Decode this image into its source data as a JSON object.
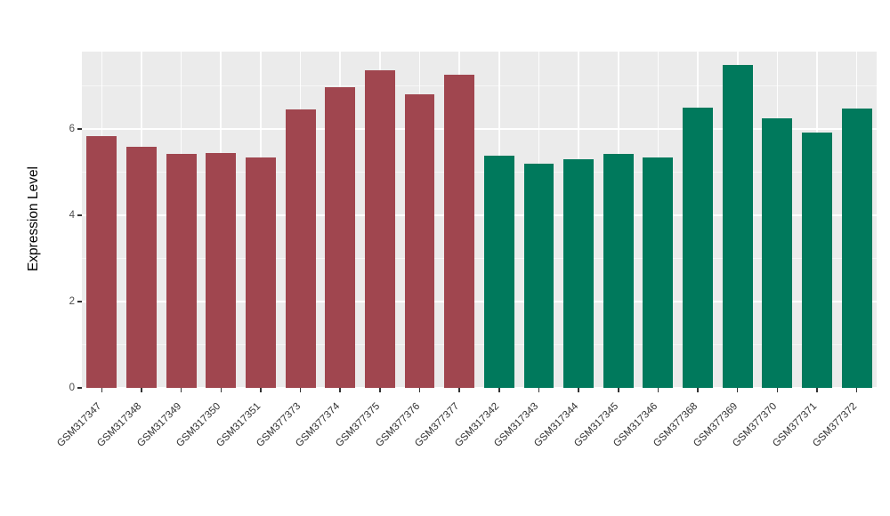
{
  "figure": {
    "background": "#FFFFFF",
    "panel_background": "#EBEBEB",
    "grid_color": "#FFFFFF",
    "axis_text_color": "#4D4D4D"
  },
  "chart_data": {
    "type": "bar",
    "title": "",
    "xlabel": "",
    "ylabel": "Expression Level",
    "categories": [
      "GSM317347",
      "GSM317348",
      "GSM317349",
      "GSM317350",
      "GSM317351",
      "GSM377373",
      "GSM377374",
      "GSM377375",
      "GSM377376",
      "GSM377377",
      "GSM317342",
      "GSM317343",
      "GSM317344",
      "GSM317345",
      "GSM317346",
      "GSM377368",
      "GSM377369",
      "GSM377370",
      "GSM377371",
      "GSM377372"
    ],
    "values": [
      5.85,
      5.6,
      5.42,
      5.44,
      5.35,
      6.45,
      6.97,
      7.37,
      6.81,
      7.26,
      5.38,
      5.2,
      5.3,
      5.43,
      5.35,
      6.49,
      7.5,
      6.26,
      5.92,
      6.47
    ],
    "groups": [
      "groupA",
      "groupA",
      "groupA",
      "groupA",
      "groupA",
      "groupA",
      "groupA",
      "groupA",
      "groupA",
      "groupA",
      "groupB",
      "groupB",
      "groupB",
      "groupB",
      "groupB",
      "groupB",
      "groupB",
      "groupB",
      "groupB",
      "groupB"
    ],
    "group_colors": {
      "groupA": "#A0464F",
      "groupB": "#00795C"
    },
    "ylim": [
      0,
      7.8
    ],
    "yticks": [
      0,
      2,
      4,
      6
    ],
    "yticks_minor": [
      1,
      3,
      5,
      7
    ],
    "grid": true,
    "legend_position": "none"
  }
}
